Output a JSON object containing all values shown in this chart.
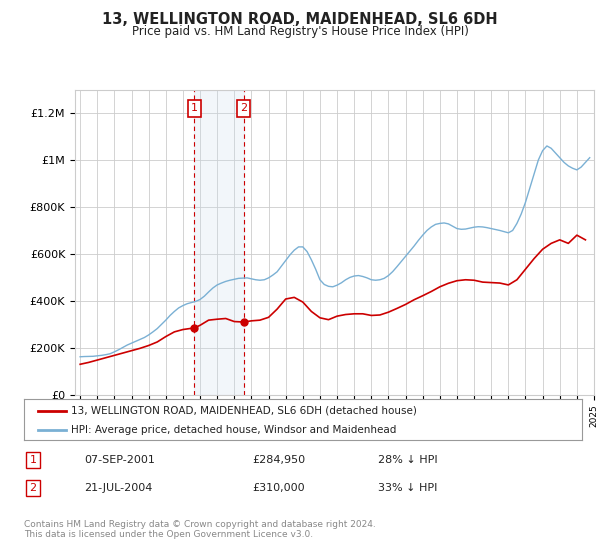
{
  "title": "13, WELLINGTON ROAD, MAIDENHEAD, SL6 6DH",
  "subtitle": "Price paid vs. HM Land Registry's House Price Index (HPI)",
  "hpi_color": "#7ab0d4",
  "price_color": "#cc0000",
  "transaction1_date": "07-SEP-2001",
  "transaction1_price": 284950,
  "transaction1_pct": "28%",
  "transaction2_date": "21-JUL-2004",
  "transaction2_price": 310000,
  "transaction2_pct": "33%",
  "legend_label1": "13, WELLINGTON ROAD, MAIDENHEAD, SL6 6DH (detached house)",
  "legend_label2": "HPI: Average price, detached house, Windsor and Maidenhead",
  "footer": "Contains HM Land Registry data © Crown copyright and database right 2024.\nThis data is licensed under the Open Government Licence v3.0.",
  "ylim": [
    0,
    1300000
  ],
  "yticks": [
    0,
    200000,
    400000,
    600000,
    800000,
    1000000,
    1200000
  ],
  "ytick_labels": [
    "£0",
    "£200K",
    "£400K",
    "£600K",
    "£800K",
    "£1M",
    "£1.2M"
  ],
  "x_start_year": 1995,
  "x_end_year": 2025,
  "background_color": "#ffffff",
  "grid_color": "#cccccc",
  "annotation_box_color": "#cc0000",
  "shading_color": "#ccdcee",
  "transaction1_x": 2001.67,
  "transaction2_x": 2004.54,
  "hpi_years": [
    1995.0,
    1995.25,
    1995.5,
    1995.75,
    1996.0,
    1996.25,
    1996.5,
    1996.75,
    1997.0,
    1997.25,
    1997.5,
    1997.75,
    1998.0,
    1998.25,
    1998.5,
    1998.75,
    1999.0,
    1999.25,
    1999.5,
    1999.75,
    2000.0,
    2000.25,
    2000.5,
    2000.75,
    2001.0,
    2001.25,
    2001.5,
    2001.75,
    2002.0,
    2002.25,
    2002.5,
    2002.75,
    2003.0,
    2003.25,
    2003.5,
    2003.75,
    2004.0,
    2004.25,
    2004.5,
    2004.75,
    2005.0,
    2005.25,
    2005.5,
    2005.75,
    2006.0,
    2006.25,
    2006.5,
    2006.75,
    2007.0,
    2007.25,
    2007.5,
    2007.75,
    2008.0,
    2008.25,
    2008.5,
    2008.75,
    2009.0,
    2009.25,
    2009.5,
    2009.75,
    2010.0,
    2010.25,
    2010.5,
    2010.75,
    2011.0,
    2011.25,
    2011.5,
    2011.75,
    2012.0,
    2012.25,
    2012.5,
    2012.75,
    2013.0,
    2013.25,
    2013.5,
    2013.75,
    2014.0,
    2014.25,
    2014.5,
    2014.75,
    2015.0,
    2015.25,
    2015.5,
    2015.75,
    2016.0,
    2016.25,
    2016.5,
    2016.75,
    2017.0,
    2017.25,
    2017.5,
    2017.75,
    2018.0,
    2018.25,
    2018.5,
    2018.75,
    2019.0,
    2019.25,
    2019.5,
    2019.75,
    2020.0,
    2020.25,
    2020.5,
    2020.75,
    2021.0,
    2021.25,
    2021.5,
    2021.75,
    2022.0,
    2022.25,
    2022.5,
    2022.75,
    2023.0,
    2023.25,
    2023.5,
    2023.75,
    2024.0,
    2024.25,
    2024.5,
    2024.75
  ],
  "hpi_values": [
    162000,
    163000,
    163500,
    164000,
    166000,
    168000,
    171000,
    175000,
    183000,
    192000,
    202000,
    212000,
    220000,
    228000,
    236000,
    244000,
    255000,
    268000,
    282000,
    300000,
    318000,
    338000,
    355000,
    370000,
    380000,
    388000,
    393000,
    398000,
    406000,
    420000,
    438000,
    455000,
    468000,
    476000,
    483000,
    488000,
    492000,
    496000,
    497000,
    498000,
    494000,
    490000,
    488000,
    490000,
    498000,
    510000,
    524000,
    548000,
    572000,
    596000,
    616000,
    630000,
    630000,
    610000,
    575000,
    535000,
    490000,
    470000,
    462000,
    460000,
    467000,
    477000,
    490000,
    500000,
    506000,
    508000,
    504000,
    498000,
    490000,
    488000,
    490000,
    496000,
    508000,
    525000,
    546000,
    568000,
    590000,
    612000,
    634000,
    658000,
    680000,
    700000,
    715000,
    726000,
    730000,
    732000,
    728000,
    718000,
    708000,
    705000,
    706000,
    710000,
    714000,
    716000,
    715000,
    712000,
    708000,
    704000,
    700000,
    695000,
    690000,
    700000,
    730000,
    770000,
    820000,
    880000,
    940000,
    1000000,
    1040000,
    1060000,
    1050000,
    1030000,
    1010000,
    990000,
    975000,
    965000,
    958000,
    970000,
    990000,
    1010000
  ],
  "price_years": [
    1995.0,
    1995.5,
    1996.0,
    1996.5,
    1997.0,
    1997.5,
    1998.0,
    1998.5,
    1999.0,
    1999.5,
    2000.0,
    2000.5,
    2001.0,
    2001.67,
    2002.0,
    2002.5,
    2003.0,
    2003.5,
    2004.0,
    2004.54,
    2005.0,
    2005.5,
    2006.0,
    2006.5,
    2007.0,
    2007.5,
    2008.0,
    2008.5,
    2009.0,
    2009.5,
    2010.0,
    2010.5,
    2011.0,
    2011.5,
    2012.0,
    2012.5,
    2013.0,
    2013.5,
    2014.0,
    2014.5,
    2015.0,
    2015.5,
    2016.0,
    2016.5,
    2017.0,
    2017.5,
    2018.0,
    2018.5,
    2019.0,
    2019.5,
    2020.0,
    2020.5,
    2021.0,
    2021.5,
    2022.0,
    2022.5,
    2023.0,
    2023.5,
    2024.0,
    2024.5
  ],
  "price_values": [
    130000,
    138000,
    148000,
    158000,
    168000,
    178000,
    188000,
    198000,
    210000,
    225000,
    248000,
    268000,
    278000,
    284950,
    296000,
    318000,
    322000,
    325000,
    312000,
    310000,
    315000,
    318000,
    330000,
    365000,
    408000,
    415000,
    395000,
    355000,
    328000,
    320000,
    335000,
    342000,
    345000,
    345000,
    338000,
    340000,
    352000,
    368000,
    385000,
    405000,
    422000,
    440000,
    460000,
    475000,
    486000,
    490000,
    488000,
    480000,
    478000,
    476000,
    468000,
    490000,
    535000,
    580000,
    620000,
    645000,
    660000,
    645000,
    680000,
    660000
  ]
}
